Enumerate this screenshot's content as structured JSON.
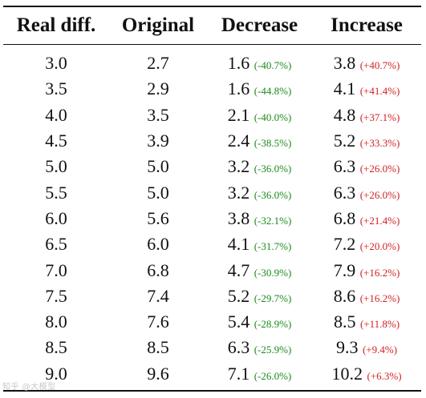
{
  "table": {
    "headers": [
      "Real diff.",
      "Original",
      "Decrease",
      "Increase"
    ],
    "rows": [
      {
        "real": "3.0",
        "original": "2.7",
        "decrease": "1.6",
        "decrease_pct": "(-40.7%)",
        "increase": "3.8",
        "increase_pct": "(+40.7%)"
      },
      {
        "real": "3.5",
        "original": "2.9",
        "decrease": "1.6",
        "decrease_pct": "(-44.8%)",
        "increase": "4.1",
        "increase_pct": "(+41.4%)"
      },
      {
        "real": "4.0",
        "original": "3.5",
        "decrease": "2.1",
        "decrease_pct": "(-40.0%)",
        "increase": "4.8",
        "increase_pct": "(+37.1%)"
      },
      {
        "real": "4.5",
        "original": "3.9",
        "decrease": "2.4",
        "decrease_pct": "(-38.5%)",
        "increase": "5.2",
        "increase_pct": "(+33.3%)"
      },
      {
        "real": "5.0",
        "original": "5.0",
        "decrease": "3.2",
        "decrease_pct": "(-36.0%)",
        "increase": "6.3",
        "increase_pct": "(+26.0%)"
      },
      {
        "real": "5.5",
        "original": "5.0",
        "decrease": "3.2",
        "decrease_pct": "(-36.0%)",
        "increase": "6.3",
        "increase_pct": "(+26.0%)"
      },
      {
        "real": "6.0",
        "original": "5.6",
        "decrease": "3.8",
        "decrease_pct": "(-32.1%)",
        "increase": "6.8",
        "increase_pct": "(+21.4%)"
      },
      {
        "real": "6.5",
        "original": "6.0",
        "decrease": "4.1",
        "decrease_pct": "(-31.7%)",
        "increase": "7.2",
        "increase_pct": "(+20.0%)"
      },
      {
        "real": "7.0",
        "original": "6.8",
        "decrease": "4.7",
        "decrease_pct": "(-30.9%)",
        "increase": "7.9",
        "increase_pct": "(+16.2%)"
      },
      {
        "real": "7.5",
        "original": "7.4",
        "decrease": "5.2",
        "decrease_pct": "(-29.7%)",
        "increase": "8.6",
        "increase_pct": "(+16.2%)"
      },
      {
        "real": "8.0",
        "original": "7.6",
        "decrease": "5.4",
        "decrease_pct": "(-28.9%)",
        "increase": "8.5",
        "increase_pct": "(+11.8%)"
      },
      {
        "real": "8.5",
        "original": "8.5",
        "decrease": "6.3",
        "decrease_pct": "(-25.9%)",
        "increase": "9.3",
        "increase_pct": "(+9.4%)"
      },
      {
        "real": "9.0",
        "original": "9.6",
        "decrease": "7.1",
        "decrease_pct": "(-26.0%)",
        "increase": "10.2",
        "increase_pct": "(+6.3%)"
      }
    ]
  },
  "colors": {
    "decrease_pct": "#1a8a1a",
    "increase_pct": "#d42020"
  }
}
